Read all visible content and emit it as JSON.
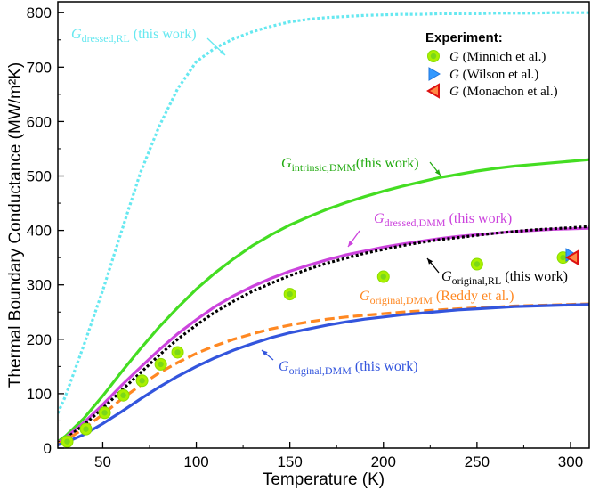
{
  "chart_data": {
    "type": "line",
    "xlabel": "Temperature (K)",
    "ylabel": "Thermal Boundary Conductance (MW/m²K)",
    "xlim": [
      26,
      310
    ],
    "ylim": [
      0,
      820
    ],
    "xticks": [
      50,
      100,
      150,
      200,
      250,
      300
    ],
    "yticks": [
      0,
      100,
      200,
      300,
      400,
      500,
      600,
      700,
      800
    ],
    "series": [
      {
        "name": "G dressed,RL (this work)",
        "style": "dotted",
        "color": "#66E8F0",
        "x": [
          26,
          30,
          40,
          50,
          60,
          70,
          80,
          90,
          100,
          110,
          120,
          130,
          140,
          150,
          160,
          170,
          180,
          190,
          200,
          210,
          220,
          230,
          240,
          250,
          260,
          270,
          280,
          290,
          300,
          310
        ],
        "y": [
          64,
          95,
          190,
          290,
          398,
          505,
          590,
          660,
          710,
          735,
          752,
          765,
          775,
          783,
          788,
          791,
          793,
          795,
          796,
          797,
          797,
          798,
          798,
          798,
          799,
          799,
          799,
          800,
          800,
          800
        ]
      },
      {
        "name": "G intrinsic,DMM (this work)",
        "style": "solid",
        "color": "#44DD22",
        "x": [
          26,
          30,
          40,
          50,
          60,
          70,
          80,
          90,
          100,
          110,
          120,
          130,
          140,
          150,
          160,
          170,
          180,
          190,
          200,
          210,
          220,
          230,
          240,
          250,
          260,
          270,
          280,
          290,
          300,
          310
        ],
        "y": [
          12,
          22,
          55,
          96,
          140,
          182,
          222,
          258,
          292,
          322,
          348,
          372,
          392,
          410,
          425,
          439,
          451,
          462,
          472,
          481,
          489,
          497,
          503,
          509,
          514,
          518,
          521,
          524,
          527,
          530
        ]
      },
      {
        "name": "G dressed,DMM (this work)",
        "style": "solid",
        "color": "#CC44DD",
        "x": [
          26,
          30,
          40,
          50,
          60,
          70,
          80,
          90,
          100,
          110,
          120,
          130,
          140,
          150,
          160,
          170,
          180,
          190,
          200,
          210,
          220,
          230,
          240,
          250,
          260,
          270,
          280,
          290,
          300,
          310
        ],
        "y": [
          10,
          19,
          47,
          80,
          115,
          148,
          180,
          210,
          236,
          260,
          280,
          297,
          312,
          325,
          336,
          346,
          355,
          362,
          369,
          375,
          380,
          385,
          389,
          392,
          395,
          398,
          400,
          402,
          403,
          404
        ]
      },
      {
        "name": "G original,RL (this work)",
        "style": "dotted",
        "color": "#000000",
        "x": [
          26,
          30,
          40,
          50,
          60,
          70,
          80,
          90,
          100,
          110,
          120,
          130,
          140,
          150,
          160,
          170,
          180,
          190,
          200,
          210,
          220,
          230,
          240,
          250,
          260,
          270,
          280,
          290,
          300,
          310
        ],
        "y": [
          9,
          17,
          43,
          73,
          106,
          138,
          170,
          200,
          226,
          250,
          270,
          288,
          303,
          317,
          329,
          340,
          349,
          358,
          365,
          372,
          378,
          383,
          387,
          391,
          395,
          398,
          401,
          403,
          405,
          407
        ]
      },
      {
        "name": "G original,DMM (Reddy et al.)",
        "style": "dashed",
        "color": "#FF8822",
        "x": [
          26,
          30,
          40,
          50,
          60,
          70,
          80,
          90,
          100,
          110,
          120,
          130,
          140,
          150,
          160,
          170,
          180,
          190,
          200,
          210,
          220,
          230,
          240,
          250,
          260,
          270,
          280,
          290,
          300,
          310
        ],
        "y": [
          8,
          14,
          36,
          62,
          90,
          115,
          138,
          157,
          174,
          188,
          200,
          210,
          219,
          226,
          232,
          237,
          241,
          244,
          247,
          250,
          252,
          254,
          256,
          258,
          259,
          261,
          262,
          263,
          264,
          265
        ]
      },
      {
        "name": "G original,DMM (this work)",
        "style": "solid",
        "color": "#3355DD",
        "x": [
          26,
          30,
          40,
          50,
          60,
          70,
          80,
          90,
          100,
          110,
          120,
          130,
          140,
          150,
          160,
          170,
          180,
          190,
          200,
          210,
          220,
          230,
          240,
          250,
          260,
          270,
          280,
          290,
          300,
          310
        ],
        "y": [
          6,
          10,
          25,
          45,
          67,
          90,
          112,
          132,
          150,
          166,
          180,
          192,
          203,
          212,
          219,
          226,
          232,
          237,
          241,
          245,
          248,
          251,
          254,
          256,
          258,
          260,
          261,
          262,
          263,
          264
        ]
      }
    ],
    "experiment": {
      "Minnich": {
        "x": [
          31,
          41,
          51,
          61,
          71,
          81,
          90,
          150,
          200,
          250,
          296
        ],
        "y": [
          12,
          35,
          65,
          97,
          124,
          154,
          176,
          283,
          315,
          338,
          350
        ]
      },
      "Wilson": {
        "x": [
          300
        ],
        "y": [
          355
        ]
      },
      "Monachon": {
        "x": [
          301
        ],
        "y": [
          350
        ]
      }
    },
    "legend": {
      "title": "Experiment:",
      "entries": [
        {
          "sym": "G",
          "text": "(Minnich et al.)"
        },
        {
          "sym": "G",
          "text": "(Wilson et al.)"
        },
        {
          "sym": "G",
          "text": "(Monachon et al.)"
        }
      ],
      "position": "top-right"
    },
    "annotations": [
      {
        "base": "G",
        "sub": "dressed,RL",
        "tail": " (this work)",
        "color": "#66E8F0"
      },
      {
        "base": "G",
        "sub": "intrinsic,DMM",
        "tail": "(this work)",
        "color": "#22AA10"
      },
      {
        "base": "G",
        "sub": "dressed,DMM",
        "tail": " (this work)",
        "color": "#CC44DD"
      },
      {
        "base": "G",
        "sub": "original,RL",
        "tail": " (this work)",
        "color": "#000000"
      },
      {
        "base": "G",
        "sub": "original,DMM",
        "tail": " (Reddy et al.)",
        "color": "#FF8822"
      },
      {
        "base": "G",
        "sub": "original,DMM",
        "tail": " (this work)",
        "color": "#3355DD"
      }
    ]
  }
}
